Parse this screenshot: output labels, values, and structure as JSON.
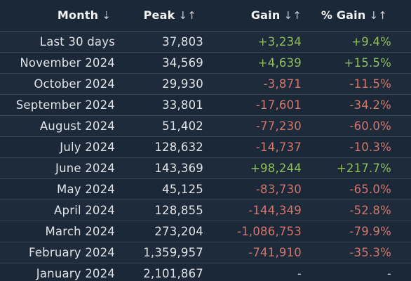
{
  "header": {
    "month_label": "Month",
    "peak_label": "Peak",
    "gain_label": "Gain",
    "pct_gain_label": "% Gain",
    "month_sort_icon": "sort-desc-icon",
    "other_sort_icon": "sort-both-icon"
  },
  "rows": [
    {
      "month": "Last 30 days",
      "peak": "37,803",
      "gain": "+3,234",
      "pct": "+9.4%",
      "trend": "pos"
    },
    {
      "month": "November 2024",
      "peak": "34,569",
      "gain": "+4,639",
      "pct": "+15.5%",
      "trend": "pos"
    },
    {
      "month": "October 2024",
      "peak": "29,930",
      "gain": "-3,871",
      "pct": "-11.5%",
      "trend": "neg"
    },
    {
      "month": "September 2024",
      "peak": "33,801",
      "gain": "-17,601",
      "pct": "-34.2%",
      "trend": "neg"
    },
    {
      "month": "August 2024",
      "peak": "51,402",
      "gain": "-77,230",
      "pct": "-60.0%",
      "trend": "neg"
    },
    {
      "month": "July 2024",
      "peak": "128,632",
      "gain": "-14,737",
      "pct": "-10.3%",
      "trend": "neg"
    },
    {
      "month": "June 2024",
      "peak": "143,369",
      "gain": "+98,244",
      "pct": "+217.7%",
      "trend": "pos"
    },
    {
      "month": "May 2024",
      "peak": "45,125",
      "gain": "-83,730",
      "pct": "-65.0%",
      "trend": "neg"
    },
    {
      "month": "April 2024",
      "peak": "128,855",
      "gain": "-144,349",
      "pct": "-52.8%",
      "trend": "neg"
    },
    {
      "month": "March 2024",
      "peak": "273,204",
      "gain": "-1,086,753",
      "pct": "-79.9%",
      "trend": "neg"
    },
    {
      "month": "February 2024",
      "peak": "1,359,957",
      "gain": "-741,910",
      "pct": "-35.3%",
      "trend": "neg"
    },
    {
      "month": "January 2024",
      "peak": "2,101,867",
      "gain": "-",
      "pct": "-",
      "trend": "neutral"
    }
  ],
  "colors": {
    "background": "#1b2838",
    "row_alt": "#1e2b3b",
    "divider": "#3a4655",
    "positive": "#8fbf5a",
    "negative": "#d4756b"
  }
}
